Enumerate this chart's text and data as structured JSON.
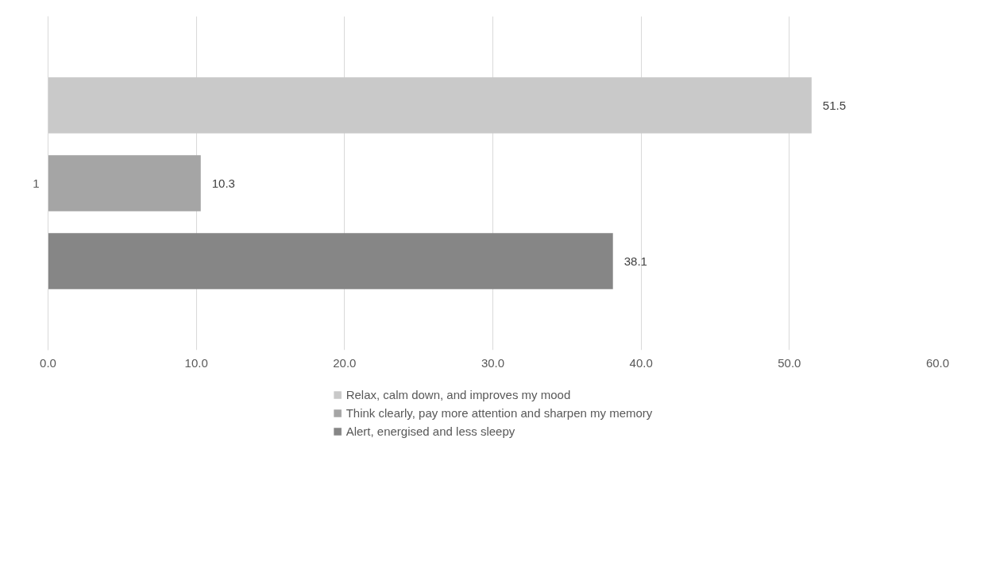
{
  "chart_data": {
    "type": "bar",
    "orientation": "horizontal",
    "categories": [
      "1"
    ],
    "series": [
      {
        "name": "Relax, calm down, and improves my mood",
        "color": "#c9c9c9",
        "values": [
          51.5
        ]
      },
      {
        "name": "Think clearly, pay more attention and sharpen my memory",
        "color": "#a5a5a5",
        "values": [
          10.3
        ]
      },
      {
        "name": "Alert, energised and less sleepy",
        "color": "#868686",
        "values": [
          38.1
        ]
      }
    ],
    "xlim": [
      0,
      60
    ],
    "xticks": [
      {
        "value": 0,
        "label": "0.0"
      },
      {
        "value": 10,
        "label": "10.0"
      },
      {
        "value": 20,
        "label": "20.0"
      },
      {
        "value": 30,
        "label": "30.0"
      },
      {
        "value": 40,
        "label": "40.0"
      },
      {
        "value": 50,
        "label": "50.0"
      },
      {
        "value": 60,
        "label": "60.0"
      }
    ],
    "grid": "x",
    "legend": "bottom",
    "data_labels": true
  }
}
